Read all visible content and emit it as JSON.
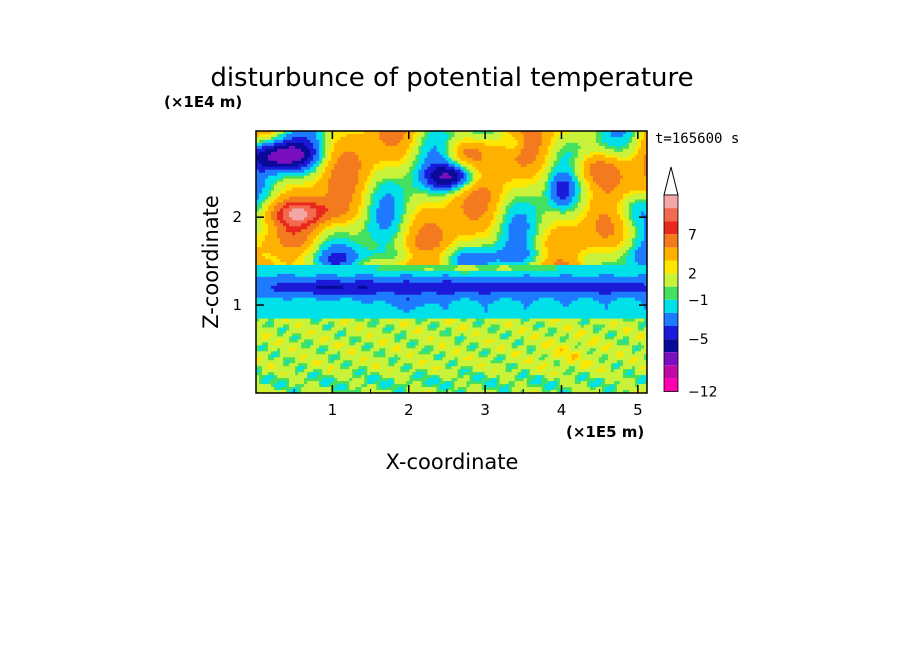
{
  "chart_data": {
    "type": "heatmap",
    "title": "disturbunce of potential temperature",
    "time_label": "t=165600 s",
    "xlabel": "X-coordinate",
    "ylabel": "Z-coordinate",
    "x_unit": "(×1E5 m)",
    "y_unit": "(×1E4 m)",
    "xlim": [
      0,
      5.12
    ],
    "ylim": [
      0,
      2.98
    ],
    "x_ticks": [
      1,
      2,
      3,
      4,
      5
    ],
    "y_ticks": [
      1,
      2
    ],
    "x_tick_labels": [
      "1",
      "2",
      "3",
      "4",
      "5"
    ],
    "y_tick_labels": [
      "1",
      "2"
    ],
    "colorbar": {
      "levels_shown": [
        "7",
        "2",
        "−1",
        "−5",
        "−12"
      ],
      "bands": [
        {
          "color": "#f4a6a6"
        },
        {
          "color": "#f26a4f"
        },
        {
          "color": "#e8291c"
        },
        {
          "color": "#f47a1f"
        },
        {
          "color": "#ffb100"
        },
        {
          "color": "#ffe600"
        },
        {
          "color": "#c9f23a"
        },
        {
          "color": "#44e060"
        },
        {
          "color": "#00e0e8"
        },
        {
          "color": "#1e7bff"
        },
        {
          "color": "#1a1ad8"
        },
        {
          "color": "#0a0a9a"
        },
        {
          "color": "#7a0fbf"
        },
        {
          "color": "#c00aa8"
        },
        {
          "color": "#ff00b0"
        }
      ],
      "extend": "max"
    },
    "features": [
      {
        "name": "upper-negative",
        "x": 0.3,
        "z": 2.7,
        "value": -7
      },
      {
        "name": "upper-positive",
        "x": 0.6,
        "z": 2.05,
        "value": 7
      },
      {
        "name": "central-positive",
        "x": 2.7,
        "z": 2.75,
        "value": 7
      },
      {
        "name": "central-negative",
        "x": 2.6,
        "z": 2.4,
        "value": -6
      },
      {
        "name": "right-positive",
        "x": 4.45,
        "z": 2.55,
        "value": 7
      },
      {
        "name": "negative-layer",
        "x": 2.5,
        "z": 1.2,
        "value": -4
      },
      {
        "name": "cyan-layer",
        "x": 2.5,
        "z": 0.95,
        "value": -1
      },
      {
        "name": "lower-yellow",
        "x": 2.5,
        "z": 0.5,
        "value": 1
      }
    ]
  }
}
